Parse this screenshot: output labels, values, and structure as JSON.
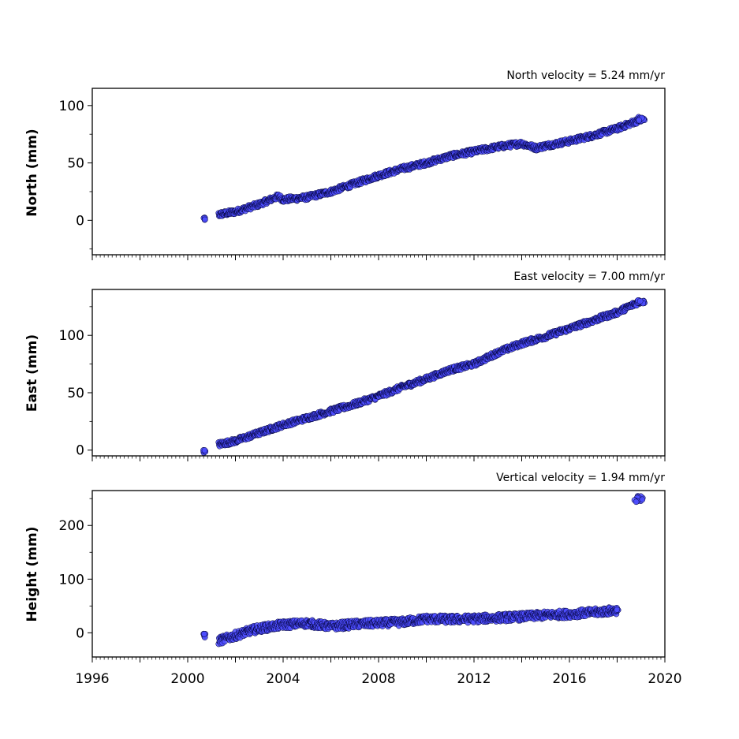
{
  "chart_data": [
    {
      "type": "scatter",
      "title": "North velocity = 5.24 mm/yr",
      "xlabel": "",
      "ylabel": "North (mm)",
      "xlim": [
        1996,
        2020
      ],
      "ylim": [
        -30,
        115
      ],
      "yticks": [
        "0",
        "50",
        "100"
      ],
      "xticks": [
        "1996",
        "2000",
        "2004",
        "2008",
        "2012",
        "2016",
        "2020"
      ],
      "show_xtick_labels": false,
      "grid": false,
      "marker_color": "#4d4dff",
      "edge_color": "#000033",
      "series": [
        {
          "values": [
            [
              2000.7,
              1.0
            ],
            [
              2001.3,
              5.0
            ],
            [
              2002.0,
              7.5
            ],
            [
              2003.0,
              14.0
            ],
            [
              2003.8,
              21.0
            ],
            [
              2004.0,
              18.0
            ],
            [
              2005.0,
              20.0
            ],
            [
              2006.0,
              25.0
            ],
            [
              2007.0,
              32.0
            ],
            [
              2008.0,
              39.0
            ],
            [
              2009.0,
              45.0
            ],
            [
              2010.0,
              50.0
            ],
            [
              2011.0,
              56.0
            ],
            [
              2012.0,
              60.0
            ],
            [
              2013.0,
              64.0
            ],
            [
              2014.0,
              67.0
            ],
            [
              2014.6,
              63.0
            ],
            [
              2015.0,
              65.0
            ],
            [
              2016.0,
              69.0
            ],
            [
              2017.0,
              74.0
            ],
            [
              2018.0,
              80.0
            ],
            [
              2019.0,
              88.0
            ]
          ]
        }
      ]
    },
    {
      "type": "scatter",
      "title": "East velocity = 7.00 mm/yr",
      "xlabel": "",
      "ylabel": "East (mm)",
      "xlim": [
        1996,
        2020
      ],
      "ylim": [
        -5,
        140
      ],
      "yticks": [
        "0",
        "50",
        "100"
      ],
      "xticks": [
        "1996",
        "2000",
        "2004",
        "2008",
        "2012",
        "2016",
        "2020"
      ],
      "show_xtick_labels": false,
      "grid": false,
      "marker_color": "#4d4dff",
      "edge_color": "#000033",
      "series": [
        {
          "values": [
            [
              2000.7,
              -1.0
            ],
            [
              2001.3,
              5.0
            ],
            [
              2002.0,
              8.0
            ],
            [
              2003.0,
              15.0
            ],
            [
              2004.0,
              22.0
            ],
            [
              2005.0,
              28.0
            ],
            [
              2006.0,
              34.0
            ],
            [
              2007.0,
              40.0
            ],
            [
              2008.0,
              47.0
            ],
            [
              2009.0,
              55.0
            ],
            [
              2010.0,
              62.0
            ],
            [
              2011.0,
              70.0
            ],
            [
              2012.0,
              75.0
            ],
            [
              2013.0,
              85.0
            ],
            [
              2014.0,
              93.0
            ],
            [
              2015.0,
              99.0
            ],
            [
              2016.0,
              106.0
            ],
            [
              2017.0,
              113.0
            ],
            [
              2018.0,
              120.0
            ],
            [
              2019.0,
              130.0
            ]
          ]
        }
      ]
    },
    {
      "type": "scatter",
      "title": "Vertical velocity = 1.94 mm/yr",
      "xlabel": "",
      "ylabel": "Height (mm)",
      "xlim": [
        1996,
        2020
      ],
      "ylim": [
        -45,
        265
      ],
      "yticks": [
        "0",
        "100",
        "200"
      ],
      "xticks": [
        "1996",
        "2000",
        "2004",
        "2008",
        "2012",
        "2016",
        "2020"
      ],
      "show_xtick_labels": true,
      "grid": false,
      "marker_color": "#4d4dff",
      "edge_color": "#000033",
      "series": [
        {
          "values": [
            [
              2000.7,
              -5.0
            ],
            [
              2001.3,
              -15.0
            ],
            [
              2002.0,
              -5.0
            ],
            [
              2002.7,
              5.0
            ],
            [
              2003.0,
              8.0
            ],
            [
              2004.0,
              15.0
            ],
            [
              2005.0,
              18.0
            ],
            [
              2006.0,
              12.0
            ],
            [
              2007.0,
              16.0
            ],
            [
              2008.0,
              18.0
            ],
            [
              2009.0,
              20.0
            ],
            [
              2010.0,
              26.0
            ],
            [
              2011.0,
              25.0
            ],
            [
              2012.0,
              26.0
            ],
            [
              2013.0,
              28.0
            ],
            [
              2014.0,
              30.0
            ],
            [
              2015.0,
              33.0
            ],
            [
              2016.0,
              35.0
            ],
            [
              2017.0,
              38.0
            ],
            [
              2018.0,
              42.0
            ],
            [
              2018.9,
              248.0
            ]
          ]
        }
      ]
    }
  ]
}
